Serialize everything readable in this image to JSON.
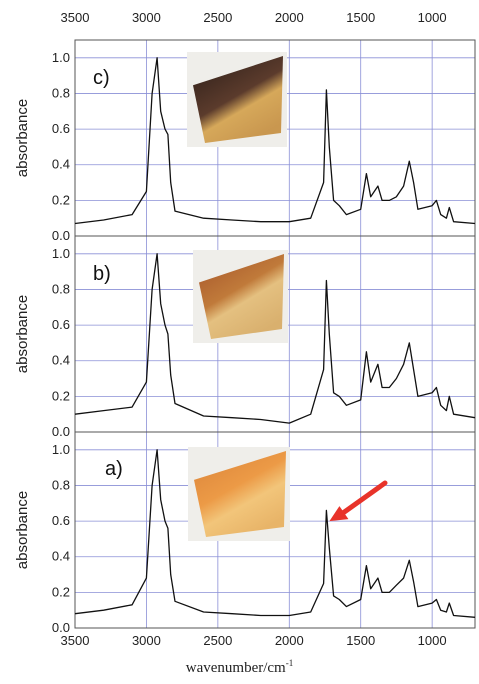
{
  "chart_data": {
    "type": "line",
    "x_axis": {
      "label_base": "wavenumber/cm",
      "label_sup": "-1",
      "range": [
        3500,
        700
      ],
      "reversed": true,
      "ticks": [
        "3500",
        "3000",
        "2500",
        "2000",
        "1500",
        "1000"
      ],
      "top_ticks": [
        "3500",
        "3000",
        "2500",
        "2000",
        "1500",
        "1000"
      ]
    },
    "y_axis": {
      "label": "absorbance",
      "range": [
        0.0,
        1.1
      ],
      "ticks": [
        "0.0",
        "0.2",
        "0.4",
        "0.6",
        "0.8",
        "1.0"
      ]
    },
    "grid": true,
    "panels": [
      {
        "label": "c)",
        "photo": "dark-charred-sample",
        "series": [
          [
            3500,
            0.07
          ],
          [
            3300,
            0.09
          ],
          [
            3100,
            0.12
          ],
          [
            3000,
            0.25
          ],
          [
            2960,
            0.8
          ],
          [
            2925,
            1.0
          ],
          [
            2900,
            0.7
          ],
          [
            2870,
            0.6
          ],
          [
            2850,
            0.57
          ],
          [
            2830,
            0.3
          ],
          [
            2800,
            0.14
          ],
          [
            2600,
            0.1
          ],
          [
            2400,
            0.09
          ],
          [
            2200,
            0.08
          ],
          [
            2000,
            0.08
          ],
          [
            1850,
            0.1
          ],
          [
            1760,
            0.3
          ],
          [
            1740,
            0.82
          ],
          [
            1720,
            0.5
          ],
          [
            1690,
            0.2
          ],
          [
            1650,
            0.17
          ],
          [
            1600,
            0.12
          ],
          [
            1500,
            0.15
          ],
          [
            1460,
            0.35
          ],
          [
            1430,
            0.22
          ],
          [
            1380,
            0.28
          ],
          [
            1350,
            0.2
          ],
          [
            1300,
            0.2
          ],
          [
            1250,
            0.22
          ],
          [
            1200,
            0.28
          ],
          [
            1160,
            0.42
          ],
          [
            1130,
            0.3
          ],
          [
            1100,
            0.15
          ],
          [
            1000,
            0.17
          ],
          [
            970,
            0.2
          ],
          [
            940,
            0.12
          ],
          [
            900,
            0.1
          ],
          [
            880,
            0.16
          ],
          [
            850,
            0.08
          ],
          [
            700,
            0.07
          ]
        ]
      },
      {
        "label": "b)",
        "photo": "golden-brown-sample",
        "series": [
          [
            3500,
            0.1
          ],
          [
            3300,
            0.12
          ],
          [
            3100,
            0.14
          ],
          [
            3000,
            0.28
          ],
          [
            2960,
            0.8
          ],
          [
            2925,
            1.0
          ],
          [
            2900,
            0.72
          ],
          [
            2870,
            0.6
          ],
          [
            2850,
            0.55
          ],
          [
            2830,
            0.32
          ],
          [
            2800,
            0.16
          ],
          [
            2600,
            0.09
          ],
          [
            2400,
            0.08
          ],
          [
            2200,
            0.07
          ],
          [
            2000,
            0.05
          ],
          [
            1850,
            0.1
          ],
          [
            1760,
            0.35
          ],
          [
            1740,
            0.85
          ],
          [
            1720,
            0.55
          ],
          [
            1690,
            0.22
          ],
          [
            1650,
            0.2
          ],
          [
            1600,
            0.15
          ],
          [
            1500,
            0.18
          ],
          [
            1460,
            0.45
          ],
          [
            1430,
            0.28
          ],
          [
            1380,
            0.38
          ],
          [
            1350,
            0.25
          ],
          [
            1300,
            0.25
          ],
          [
            1250,
            0.3
          ],
          [
            1200,
            0.38
          ],
          [
            1160,
            0.5
          ],
          [
            1130,
            0.35
          ],
          [
            1100,
            0.2
          ],
          [
            1000,
            0.22
          ],
          [
            970,
            0.25
          ],
          [
            940,
            0.15
          ],
          [
            900,
            0.12
          ],
          [
            880,
            0.2
          ],
          [
            850,
            0.1
          ],
          [
            700,
            0.08
          ]
        ]
      },
      {
        "label": "a)",
        "photo": "orange-yellow-sample",
        "series": [
          [
            3500,
            0.08
          ],
          [
            3300,
            0.1
          ],
          [
            3100,
            0.13
          ],
          [
            3000,
            0.28
          ],
          [
            2960,
            0.8
          ],
          [
            2925,
            1.0
          ],
          [
            2900,
            0.72
          ],
          [
            2870,
            0.6
          ],
          [
            2850,
            0.56
          ],
          [
            2830,
            0.3
          ],
          [
            2800,
            0.15
          ],
          [
            2600,
            0.09
          ],
          [
            2400,
            0.08
          ],
          [
            2200,
            0.07
          ],
          [
            2000,
            0.07
          ],
          [
            1850,
            0.09
          ],
          [
            1760,
            0.25
          ],
          [
            1740,
            0.66
          ],
          [
            1720,
            0.45
          ],
          [
            1690,
            0.18
          ],
          [
            1650,
            0.16
          ],
          [
            1600,
            0.12
          ],
          [
            1500,
            0.16
          ],
          [
            1460,
            0.35
          ],
          [
            1430,
            0.22
          ],
          [
            1380,
            0.28
          ],
          [
            1350,
            0.2
          ],
          [
            1300,
            0.2
          ],
          [
            1250,
            0.24
          ],
          [
            1200,
            0.28
          ],
          [
            1160,
            0.38
          ],
          [
            1130,
            0.26
          ],
          [
            1100,
            0.12
          ],
          [
            1000,
            0.14
          ],
          [
            970,
            0.16
          ],
          [
            940,
            0.1
          ],
          [
            900,
            0.09
          ],
          [
            880,
            0.14
          ],
          [
            850,
            0.07
          ],
          [
            700,
            0.06
          ]
        ],
        "arrow": {
          "target_x": 1740,
          "target_y": 0.6,
          "color": "#e8332a"
        }
      }
    ],
    "colors": {
      "line": "#111111",
      "grid": "#8a8fd6",
      "frame": "#555555",
      "arrow": "#e8332a"
    }
  }
}
